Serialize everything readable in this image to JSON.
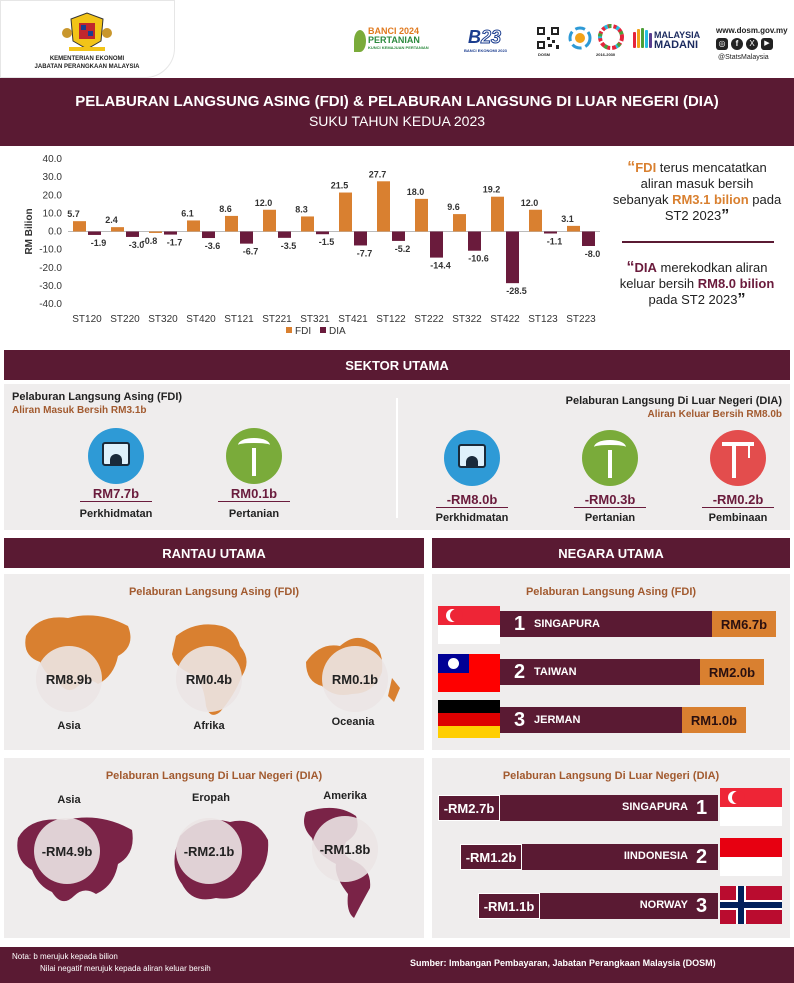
{
  "header": {
    "ministry_line1": "KEMENTERIAN EKONOMI",
    "ministry_line2": "JABATAN PERANGKAAN MALAYSIA",
    "banci_line1": "BANCI 2024",
    "banci_line2": "PERTANIAN",
    "banci_sub": "KUNCI KEMAJUAN PERTANIAN",
    "banci_ekonomi": "BANCI EKONOMI 2023",
    "dosm_tag": "DOSM",
    "madani_line1": "MALAYSIA",
    "madani_line2": "MADANI",
    "sdg_years": "2016-2030",
    "website": "www.dosm.gov.my",
    "handle": "@StatsMalaysia",
    "title": "PELABURAN LANGSUNG ASING (FDI) & PELABURAN LANGSUNG DI LUAR NEGERI (DIA)",
    "subtitle": "SUKU TAHUN KEDUA 2023"
  },
  "chart_data": {
    "type": "bar",
    "ylabel": "RM Bilion",
    "ylim": [
      -40,
      40
    ],
    "yticks": [
      "40.0",
      "30.0",
      "20.0",
      "10.0",
      "0.0",
      "-10.0",
      "-20.0",
      "-30.0",
      "-40.0"
    ],
    "categories": [
      "ST120",
      "ST220",
      "ST320",
      "ST420",
      "ST121",
      "ST221",
      "ST321",
      "ST421",
      "ST122",
      "ST222",
      "ST322",
      "ST422",
      "ST123",
      "ST223"
    ],
    "series": [
      {
        "name": "FDI",
        "color": "#d98030",
        "values": [
          5.7,
          2.4,
          -0.8,
          6.1,
          8.6,
          12.0,
          8.3,
          21.5,
          27.7,
          18.0,
          9.6,
          19.2,
          12.0,
          3.1
        ],
        "labels": [
          "5.7",
          "2.4",
          "-0.8",
          "6.1",
          "8.6",
          "12.0",
          "8.3",
          "21.5",
          "27.7",
          "18.0",
          "9.6",
          "19.2",
          "12.0",
          "3.1"
        ]
      },
      {
        "name": "DIA",
        "color": "#6a1b3c",
        "values": [
          -1.9,
          -3.0,
          -1.7,
          -3.6,
          -6.7,
          -3.5,
          -1.5,
          -7.7,
          -5.2,
          -14.4,
          -10.6,
          -28.5,
          -1.1,
          -8.0
        ],
        "labels": [
          "-1.9",
          "-3.0",
          "-1.7",
          "-3.6",
          "-6.7",
          "-3.5",
          "-1.5",
          "-7.7",
          "-5.2",
          "-14.4",
          "-10.6",
          "-28.5",
          "-1.1",
          "-8.0"
        ]
      }
    ],
    "legend": "bottom"
  },
  "callouts": {
    "fdi_a": "FDI",
    "fdi_b": " terus mencatatkan aliran masuk bersih sebanyak ",
    "fdi_c": "RM3.1 bilion",
    "fdi_d": " pada ST2 2023",
    "dia_a": "DIA",
    "dia_b": " merekodkan aliran keluar bersih ",
    "dia_c": "RM8.0 bilion",
    "dia_d": " pada ST2 2023",
    "open_quote": "“",
    "close_quote": "”"
  },
  "sektor": {
    "heading": "SEKTOR UTAMA",
    "fdi_title": "Pelaburan Langsung Asing (FDI)",
    "fdi_sub": "Aliran Masuk Bersih RM3.1b",
    "dia_title": "Pelaburan Langsung Di Luar Negeri (DIA)",
    "dia_sub": "Aliran Keluar Bersih RM8.0b",
    "fdi_items": [
      {
        "value": "RM7.7b",
        "name": "Perkhidmatan",
        "icon": "services-icon"
      },
      {
        "value": "RM0.1b",
        "name": "Pertanian",
        "icon": "palm-tree-icon"
      }
    ],
    "dia_items": [
      {
        "value": "-RM8.0b",
        "name": "Perkhidmatan",
        "icon": "services-icon"
      },
      {
        "value": "-RM0.3b",
        "name": "Pertanian",
        "icon": "palm-tree-icon"
      },
      {
        "value": "-RM0.2b",
        "name": "Pembinaan",
        "icon": "crane-icon"
      }
    ],
    "colors": {
      "services": "#2e9ad6",
      "agri": "#7aab3a",
      "construction": "#e34d4d"
    }
  },
  "rantau": {
    "heading": "RANTAU UTAMA",
    "fdi_title": "Pelaburan Langsung Asing (FDI)",
    "dia_title": "Pelaburan Langsung Di Luar Negeri (DIA)",
    "fdi_items": [
      {
        "value": "RM8.9b",
        "name": "Asia"
      },
      {
        "value": "RM0.4b",
        "name": "Afrika"
      },
      {
        "value": "RM0.1b",
        "name": "Oceania"
      }
    ],
    "dia_items": [
      {
        "value": "-RM4.9b",
        "name": "Asia"
      },
      {
        "value": "-RM2.1b",
        "name": "Eropah"
      },
      {
        "value": "-RM1.8b",
        "name": "Amerika"
      }
    ]
  },
  "negara": {
    "heading": "NEGARA UTAMA",
    "fdi_title": "Pelaburan Langsung Asing (FDI)",
    "dia_title": "Pelaburan Langsung Di Luar Negeri (DIA)",
    "fdi_items": [
      {
        "rank": "1",
        "name": "SINGAPURA",
        "value": "RM6.7b",
        "flag": "singapore-flag"
      },
      {
        "rank": "2",
        "name": "TAIWAN",
        "value": "RM2.0b",
        "flag": "taiwan-flag"
      },
      {
        "rank": "3",
        "name": "JERMAN",
        "value": "RM1.0b",
        "flag": "germany-flag"
      }
    ],
    "dia_items": [
      {
        "rank": "1",
        "name": "SINGAPURA",
        "value": "-RM2.7b",
        "flag": "singapore-flag"
      },
      {
        "rank": "2",
        "name": "IINDONESIA",
        "value": "-RM1.2b",
        "flag": "indonesia-flag"
      },
      {
        "rank": "3",
        "name": "NORWAY",
        "value": "-RM1.1b",
        "flag": "norway-flag"
      }
    ]
  },
  "footer": {
    "note1": "Nota: b merujuk kepada  bilion",
    "note2": "Nilai negatif  merujuk kepada  aliran keluar bersih",
    "source": "Sumber: Imbangan Pembayaran, Jabatan Perangkaan Malaysia (DOSM)"
  }
}
